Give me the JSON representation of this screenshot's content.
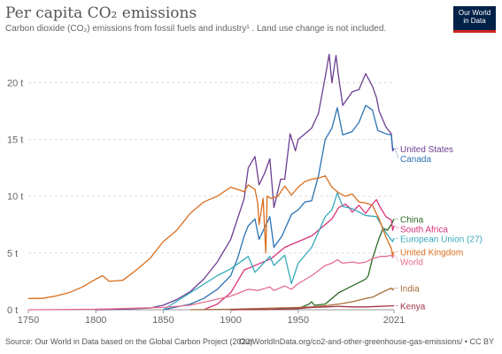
{
  "header": {
    "title": "Per capita CO₂ emissions",
    "subtitle": "Carbon dioxide (CO₂) emissions from fossil fuels and industry¹ . Land use change is not included.",
    "logo_lines": [
      "Our World",
      "in Data"
    ]
  },
  "footer": {
    "source": "Source: Our World in Data based on the Global Carbon Project (2022)",
    "url": "OurWorldInData.org/co2-and-other-greenhouse-gas-emissions/ • CC BY"
  },
  "chart_data": {
    "type": "line",
    "title": "Per capita CO₂ emissions",
    "xlim": [
      1750,
      2021
    ],
    "ylim": [
      0,
      23
    ],
    "x_ticks": [
      1750,
      1800,
      1850,
      1900,
      1950,
      2021
    ],
    "x_tick_labels": [
      "1750",
      "1800",
      "1850",
      "1900",
      "1950",
      "2021"
    ],
    "y_ticks": [
      0,
      5,
      10,
      15,
      20
    ],
    "y_tick_labels": [
      "0 t",
      "5 t",
      "10 t",
      "15 t",
      "20 t"
    ],
    "grid": "horizontal-dashed",
    "legend": "right-labels",
    "series": [
      {
        "name": "United States",
        "color": "#6d3e91",
        "label_year": 2021,
        "points": [
          [
            1800,
            0.0
          ],
          [
            1820,
            0.05
          ],
          [
            1830,
            0.1
          ],
          [
            1840,
            0.15
          ],
          [
            1850,
            0.4
          ],
          [
            1860,
            0.9
          ],
          [
            1870,
            1.6
          ],
          [
            1880,
            2.7
          ],
          [
            1890,
            4.2
          ],
          [
            1900,
            6.2
          ],
          [
            1905,
            8.0
          ],
          [
            1910,
            9.8
          ],
          [
            1913,
            12.5
          ],
          [
            1918,
            13.5
          ],
          [
            1921,
            11.0
          ],
          [
            1925,
            12.0
          ],
          [
            1929,
            13.3
          ],
          [
            1932,
            9.0
          ],
          [
            1937,
            11.5
          ],
          [
            1940,
            11.5
          ],
          [
            1944,
            15.5
          ],
          [
            1948,
            14.0
          ],
          [
            1950,
            15.0
          ],
          [
            1955,
            15.5
          ],
          [
            1960,
            16.0
          ],
          [
            1965,
            17.3
          ],
          [
            1970,
            20.5
          ],
          [
            1973,
            22.5
          ],
          [
            1975,
            20.0
          ],
          [
            1978,
            22.4
          ],
          [
            1980,
            20.5
          ],
          [
            1983,
            18.0
          ],
          [
            1990,
            19.2
          ],
          [
            1995,
            19.4
          ],
          [
            2000,
            20.8
          ],
          [
            2005,
            19.7
          ],
          [
            2008,
            18.7
          ],
          [
            2010,
            17.5
          ],
          [
            2015,
            16.1
          ],
          [
            2019,
            15.5
          ],
          [
            2020,
            14.0
          ],
          [
            2021,
            14.2
          ]
        ]
      },
      {
        "name": "Canada",
        "color": "#2a72b2",
        "label_year": 2021,
        "points": [
          [
            1850,
            0.0
          ],
          [
            1870,
            0.5
          ],
          [
            1880,
            1.0
          ],
          [
            1890,
            1.8
          ],
          [
            1900,
            3.0
          ],
          [
            1905,
            4.5
          ],
          [
            1910,
            6.5
          ],
          [
            1913,
            7.4
          ],
          [
            1918,
            8.0
          ],
          [
            1921,
            6.2
          ],
          [
            1929,
            8.2
          ],
          [
            1932,
            5.5
          ],
          [
            1938,
            6.5
          ],
          [
            1945,
            8.4
          ],
          [
            1950,
            8.8
          ],
          [
            1955,
            9.5
          ],
          [
            1960,
            9.6
          ],
          [
            1965,
            11.8
          ],
          [
            1970,
            15.0
          ],
          [
            1975,
            16.0
          ],
          [
            1979,
            17.8
          ],
          [
            1983,
            15.4
          ],
          [
            1990,
            15.7
          ],
          [
            1995,
            16.5
          ],
          [
            2000,
            18.0
          ],
          [
            2005,
            17.6
          ],
          [
            2009,
            15.8
          ],
          [
            2015,
            15.5
          ],
          [
            2019,
            15.4
          ],
          [
            2020,
            14.2
          ],
          [
            2021,
            14.2
          ]
        ]
      },
      {
        "name": "China",
        "color": "#286b25",
        "label_year": 2021,
        "points": [
          [
            1900,
            0.0
          ],
          [
            1930,
            0.05
          ],
          [
            1950,
            0.1
          ],
          [
            1958,
            0.5
          ],
          [
            1960,
            0.7
          ],
          [
            1962,
            0.4
          ],
          [
            1970,
            0.5
          ],
          [
            1980,
            1.5
          ],
          [
            1990,
            2.1
          ],
          [
            2000,
            2.7
          ],
          [
            2002,
            3.0
          ],
          [
            2005,
            4.5
          ],
          [
            2010,
            6.3
          ],
          [
            2013,
            7.2
          ],
          [
            2016,
            7.0
          ],
          [
            2019,
            7.5
          ],
          [
            2021,
            8.0
          ]
        ]
      },
      {
        "name": "South Africa",
        "color": "#d7327a",
        "label_year": 2021,
        "points": [
          [
            1880,
            0.0
          ],
          [
            1890,
            0.5
          ],
          [
            1900,
            1.5
          ],
          [
            1910,
            3.5
          ],
          [
            1920,
            4.0
          ],
          [
            1930,
            4.5
          ],
          [
            1940,
            5.5
          ],
          [
            1950,
            6.0
          ],
          [
            1960,
            6.5
          ],
          [
            1970,
            7.5
          ],
          [
            1975,
            8.0
          ],
          [
            1980,
            9.0
          ],
          [
            1985,
            9.3
          ],
          [
            1988,
            9.0
          ],
          [
            1990,
            8.6
          ],
          [
            1995,
            9.2
          ],
          [
            2000,
            8.5
          ],
          [
            2005,
            9.3
          ],
          [
            2008,
            9.7
          ],
          [
            2010,
            9.2
          ],
          [
            2015,
            8.2
          ],
          [
            2019,
            7.9
          ],
          [
            2020,
            7.0
          ],
          [
            2021,
            7.4
          ]
        ]
      },
      {
        "name": "European Union (27)",
        "color": "#38aaba",
        "label_year": 2021,
        "points": [
          [
            1850,
            0.0
          ],
          [
            1870,
            1.5
          ],
          [
            1890,
            3.0
          ],
          [
            1900,
            3.6
          ],
          [
            1913,
            4.7
          ],
          [
            1918,
            3.3
          ],
          [
            1929,
            4.7
          ],
          [
            1932,
            3.9
          ],
          [
            1940,
            4.8
          ],
          [
            1945,
            2.3
          ],
          [
            1950,
            4.1
          ],
          [
            1960,
            5.5
          ],
          [
            1970,
            8.2
          ],
          [
            1975,
            8.8
          ],
          [
            1979,
            10.3
          ],
          [
            1983,
            9.1
          ],
          [
            1990,
            8.9
          ],
          [
            2000,
            8.3
          ],
          [
            2008,
            8.2
          ],
          [
            2010,
            7.8
          ],
          [
            2015,
            6.8
          ],
          [
            2020,
            6.0
          ],
          [
            2021,
            6.3
          ]
        ]
      },
      {
        "name": "United Kingdom",
        "color": "#d96e1f",
        "label_year": 2021,
        "points": [
          [
            1750,
            1.0
          ],
          [
            1760,
            1.0
          ],
          [
            1770,
            1.2
          ],
          [
            1780,
            1.5
          ],
          [
            1790,
            2.0
          ],
          [
            1800,
            2.7
          ],
          [
            1805,
            3.0
          ],
          [
            1810,
            2.5
          ],
          [
            1820,
            2.6
          ],
          [
            1830,
            3.5
          ],
          [
            1840,
            4.5
          ],
          [
            1850,
            6.0
          ],
          [
            1860,
            7.0
          ],
          [
            1870,
            8.5
          ],
          [
            1880,
            9.5
          ],
          [
            1890,
            10.0
          ],
          [
            1900,
            10.8
          ],
          [
            1905,
            10.6
          ],
          [
            1910,
            10.4
          ],
          [
            1913,
            11.0
          ],
          [
            1918,
            10.6
          ],
          [
            1920,
            9.4
          ],
          [
            1921,
            7.5
          ],
          [
            1924,
            9.8
          ],
          [
            1926,
            5.0
          ],
          [
            1927,
            10.0
          ],
          [
            1930,
            9.8
          ],
          [
            1935,
            10.0
          ],
          [
            1940,
            10.9
          ],
          [
            1945,
            10.1
          ],
          [
            1950,
            10.8
          ],
          [
            1955,
            11.3
          ],
          [
            1960,
            11.5
          ],
          [
            1965,
            11.6
          ],
          [
            1970,
            11.8
          ],
          [
            1975,
            10.8
          ],
          [
            1980,
            10.3
          ],
          [
            1985,
            10.0
          ],
          [
            1990,
            10.2
          ],
          [
            1995,
            9.5
          ],
          [
            2000,
            9.4
          ],
          [
            2005,
            9.2
          ],
          [
            2010,
            8.0
          ],
          [
            2015,
            6.4
          ],
          [
            2019,
            5.4
          ],
          [
            2020,
            4.8
          ],
          [
            2021,
            5.1
          ]
        ]
      },
      {
        "name": "World",
        "color": "#e56e8c",
        "label_year": 2021,
        "points": [
          [
            1750,
            0.0
          ],
          [
            1800,
            0.05
          ],
          [
            1850,
            0.2
          ],
          [
            1870,
            0.4
          ],
          [
            1900,
            1.2
          ],
          [
            1913,
            1.8
          ],
          [
            1920,
            1.7
          ],
          [
            1929,
            2.0
          ],
          [
            1932,
            1.7
          ],
          [
            1940,
            2.1
          ],
          [
            1945,
            1.8
          ],
          [
            1950,
            2.3
          ],
          [
            1960,
            3.0
          ],
          [
            1970,
            3.9
          ],
          [
            1975,
            4.1
          ],
          [
            1979,
            4.4
          ],
          [
            1983,
            4.1
          ],
          [
            1990,
            4.2
          ],
          [
            1995,
            4.1
          ],
          [
            2000,
            4.2
          ],
          [
            2005,
            4.5
          ],
          [
            2011,
            4.7
          ],
          [
            2015,
            4.7
          ],
          [
            2019,
            4.8
          ],
          [
            2020,
            4.6
          ],
          [
            2021,
            4.8
          ]
        ]
      },
      {
        "name": "India",
        "color": "#a86f3a",
        "label_year": 2021,
        "points": [
          [
            1870,
            0.0
          ],
          [
            1900,
            0.05
          ],
          [
            1950,
            0.2
          ],
          [
            1960,
            0.25
          ],
          [
            1970,
            0.35
          ],
          [
            1980,
            0.5
          ],
          [
            1990,
            0.7
          ],
          [
            2000,
            1.0
          ],
          [
            2005,
            1.1
          ],
          [
            2010,
            1.4
          ],
          [
            2015,
            1.7
          ],
          [
            2019,
            1.9
          ],
          [
            2020,
            1.75
          ],
          [
            2021,
            1.9
          ]
        ]
      },
      {
        "name": "Kenya",
        "color": "#a6324a",
        "label_year": 2021,
        "points": [
          [
            1900,
            0.0
          ],
          [
            1940,
            0.05
          ],
          [
            1950,
            0.1
          ],
          [
            1960,
            0.2
          ],
          [
            1970,
            0.25
          ],
          [
            1980,
            0.3
          ],
          [
            1990,
            0.25
          ],
          [
            2000,
            0.25
          ],
          [
            2010,
            0.3
          ],
          [
            2021,
            0.35
          ]
        ]
      }
    ]
  }
}
